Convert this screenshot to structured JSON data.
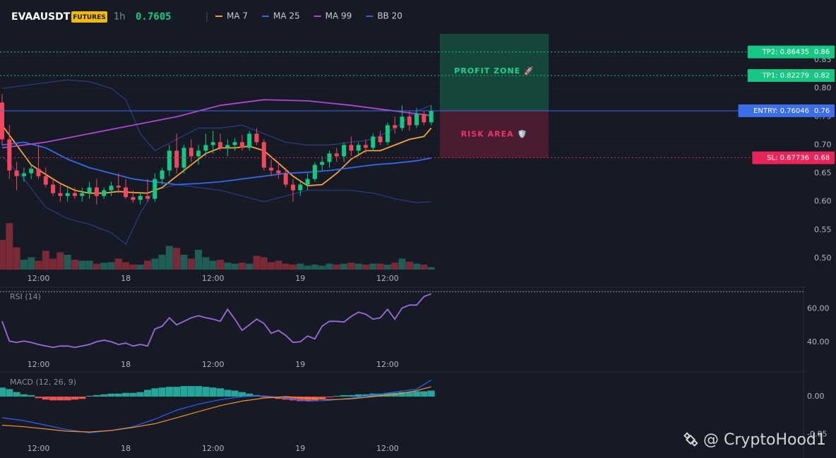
{
  "header": {
    "symbol": "EVAAUSDT",
    "badge": "FUTURES",
    "interval": "1h",
    "price": 0.7605
  },
  "watermark": "@ CryptoHood1",
  "chart_data": [
    {
      "type": "candlestick",
      "categories": [
        null,
        null,
        null,
        null,
        null,
        "12:00",
        null,
        null,
        null,
        null,
        null,
        null,
        null,
        null,
        null,
        null,
        null,
        "18",
        null,
        null,
        null,
        null,
        null,
        null,
        null,
        null,
        null,
        null,
        null,
        "12:00",
        null,
        null,
        null,
        null,
        null,
        null,
        null,
        null,
        null,
        null,
        null,
        "19",
        null,
        null,
        null,
        null,
        null,
        null,
        null,
        null,
        null,
        null,
        null,
        "12:00",
        null,
        null,
        null,
        null,
        null,
        null
      ],
      "open": [
        0.775,
        0.71,
        0.655,
        0.645,
        0.65,
        0.658,
        0.645,
        0.63,
        0.615,
        0.61,
        0.615,
        0.61,
        0.615,
        0.625,
        0.61,
        0.62,
        0.628,
        0.625,
        0.608,
        0.603,
        0.61,
        0.605,
        0.64,
        0.655,
        0.69,
        0.66,
        0.695,
        0.68,
        0.69,
        0.7,
        0.705,
        0.695,
        0.7,
        0.705,
        0.695,
        0.72,
        0.705,
        0.66,
        0.655,
        0.65,
        0.63,
        0.62,
        0.63,
        0.64,
        0.665,
        0.67,
        0.685,
        0.68,
        0.7,
        0.69,
        0.7,
        0.695,
        0.715,
        0.705,
        0.735,
        0.73,
        0.75,
        0.735,
        0.755,
        0.74
      ],
      "high": [
        0.79,
        0.735,
        0.67,
        0.66,
        0.665,
        0.7,
        0.66,
        0.64,
        0.63,
        0.625,
        0.625,
        0.625,
        0.635,
        0.64,
        0.625,
        0.635,
        0.65,
        0.64,
        0.62,
        0.615,
        0.64,
        0.65,
        0.66,
        0.7,
        0.72,
        0.7,
        0.71,
        0.7,
        0.72,
        0.725,
        0.72,
        0.71,
        0.712,
        0.718,
        0.725,
        0.73,
        0.71,
        0.675,
        0.67,
        0.66,
        0.64,
        0.635,
        0.65,
        0.67,
        0.68,
        0.69,
        0.695,
        0.705,
        0.715,
        0.705,
        0.71,
        0.72,
        0.725,
        0.74,
        0.75,
        0.77,
        0.76,
        0.765,
        0.76,
        0.77
      ],
      "low": [
        0.7,
        0.64,
        0.62,
        0.635,
        0.64,
        0.64,
        0.625,
        0.61,
        0.6,
        0.6,
        0.605,
        0.6,
        0.605,
        0.595,
        0.605,
        0.61,
        0.615,
        0.605,
        0.598,
        0.595,
        0.6,
        0.6,
        0.63,
        0.645,
        0.65,
        0.65,
        0.67,
        0.665,
        0.68,
        0.685,
        0.69,
        0.68,
        0.69,
        0.69,
        0.69,
        0.7,
        0.655,
        0.645,
        0.64,
        0.625,
        0.6,
        0.61,
        0.62,
        0.635,
        0.655,
        0.66,
        0.67,
        0.67,
        0.68,
        0.68,
        0.685,
        0.69,
        0.7,
        0.7,
        0.72,
        0.725,
        0.725,
        0.73,
        0.735,
        0.735
      ],
      "close": [
        0.71,
        0.655,
        0.645,
        0.65,
        0.658,
        0.645,
        0.63,
        0.615,
        0.61,
        0.615,
        0.61,
        0.615,
        0.625,
        0.61,
        0.62,
        0.628,
        0.625,
        0.608,
        0.603,
        0.61,
        0.605,
        0.64,
        0.655,
        0.69,
        0.66,
        0.695,
        0.68,
        0.69,
        0.7,
        0.705,
        0.695,
        0.7,
        0.705,
        0.695,
        0.72,
        0.705,
        0.66,
        0.655,
        0.65,
        0.63,
        0.62,
        0.63,
        0.64,
        0.665,
        0.67,
        0.685,
        0.68,
        0.7,
        0.69,
        0.7,
        0.695,
        0.715,
        0.705,
        0.735,
        0.73,
        0.75,
        0.735,
        0.755,
        0.74,
        0.76
      ],
      "up_color": "#0ecb81",
      "down_color": "#f6465d",
      "ylim": [
        0.48,
        0.9
      ],
      "yticks": [
        {
          "value": 0.5,
          "label": "0.50"
        },
        {
          "value": 0.55,
          "label": "0.55"
        },
        {
          "value": 0.6,
          "label": "0.60"
        },
        {
          "value": 0.65,
          "label": "0.65"
        },
        {
          "value": 0.7,
          "label": "0.70"
        },
        {
          "value": 0.75,
          "label": "0.75"
        },
        {
          "value": 0.8,
          "label": "0.80"
        },
        {
          "value": 0.85,
          "label": "0.85"
        }
      ],
      "series": [
        {
          "name": "MA 7",
          "color": "#f7a334",
          "x": [
            0,
            2,
            4,
            6,
            8,
            10,
            12,
            14,
            16,
            18,
            20,
            22,
            24,
            26,
            28,
            30,
            32,
            34,
            36,
            38,
            40,
            42,
            44,
            46,
            48,
            50,
            52,
            54,
            56,
            58,
            59
          ],
          "values": [
            0.735,
            0.7,
            0.665,
            0.648,
            0.632,
            0.62,
            0.615,
            0.615,
            0.618,
            0.616,
            0.615,
            0.625,
            0.645,
            0.665,
            0.685,
            0.695,
            0.695,
            0.698,
            0.69,
            0.668,
            0.645,
            0.628,
            0.63,
            0.65,
            0.675,
            0.69,
            0.69,
            0.7,
            0.71,
            0.715,
            0.73
          ]
        },
        {
          "name": "MA 25",
          "color": "#2f6bea",
          "x": [
            0,
            3,
            6,
            9,
            12,
            15,
            18,
            21,
            24,
            27,
            30,
            33,
            36,
            39,
            42,
            45,
            48,
            51,
            54,
            57,
            59
          ],
          "values": [
            0.7,
            0.705,
            0.695,
            0.675,
            0.66,
            0.65,
            0.64,
            0.635,
            0.63,
            0.632,
            0.635,
            0.64,
            0.645,
            0.65,
            0.652,
            0.655,
            0.66,
            0.665,
            0.668,
            0.672,
            0.677
          ]
        },
        {
          "name": "MA 99",
          "color": "#b045d1",
          "x": [
            0,
            6,
            12,
            18,
            24,
            30,
            36,
            42,
            48,
            54,
            59
          ],
          "values": [
            0.695,
            0.705,
            0.72,
            0.735,
            0.75,
            0.77,
            0.78,
            0.778,
            0.77,
            0.76,
            0.752
          ]
        }
      ],
      "bands": {
        "name": "BB 20",
        "color": "#2c3d86",
        "x": [
          0,
          3,
          6,
          9,
          12,
          15,
          17,
          19,
          21,
          24,
          27,
          30,
          33,
          36,
          39,
          42,
          45,
          48,
          51,
          54,
          57,
          59
        ],
        "upper": [
          0.8,
          0.805,
          0.81,
          0.815,
          0.812,
          0.8,
          0.78,
          0.72,
          0.69,
          0.71,
          0.73,
          0.73,
          0.735,
          0.72,
          0.705,
          0.7,
          0.7,
          0.705,
          0.71,
          0.73,
          0.76,
          0.77
        ],
        "lower": [
          0.68,
          0.64,
          0.59,
          0.57,
          0.56,
          0.545,
          0.525,
          0.58,
          0.62,
          0.63,
          0.625,
          0.62,
          0.61,
          0.6,
          0.61,
          0.62,
          0.62,
          0.62,
          0.615,
          0.605,
          0.598,
          0.6
        ]
      },
      "levels": [
        {
          "label": "TP2: 0.86435",
          "value": 0.86435,
          "axis_label": "0.86",
          "color": "#16c784",
          "dashed": true
        },
        {
          "label": "TP1: 0.82279",
          "value": 0.82279,
          "axis_label": "0.82",
          "color": "#16c784",
          "dashed": true
        },
        {
          "label": "ENTRY: 0.76046",
          "value": 0.76046,
          "axis_label": "0.76",
          "color": "#3b6ee8",
          "dashed": false
        },
        {
          "label": "SL: 0.67736",
          "value": 0.67736,
          "axis_label": "0.68",
          "color": "#e8245a",
          "dashed": true
        }
      ],
      "profit_zone_label": "PROFIT ZONE 🚀",
      "risk_zone_label": "RISK AREA 🛡️"
    },
    {
      "type": "volume",
      "ylim": [
        0,
        100
      ],
      "up_color": "#1f5e57",
      "down_color": "#7a2a37",
      "values": [
        60,
        94,
        45,
        20,
        25,
        18,
        38,
        22,
        35,
        30,
        20,
        18,
        18,
        12,
        14,
        15,
        22,
        15,
        10,
        10,
        18,
        22,
        30,
        48,
        44,
        30,
        22,
        40,
        25,
        18,
        20,
        14,
        12,
        14,
        12,
        28,
        25,
        15,
        18,
        12,
        10,
        12,
        8,
        10,
        8,
        12,
        10,
        12,
        14,
        12,
        10,
        12,
        12,
        10,
        14,
        22,
        16,
        12,
        10,
        5
      ]
    },
    {
      "type": "line",
      "title": "RSI (14)",
      "color": "#9c6ade",
      "ylim": [
        33,
        71
      ],
      "yticks": [
        {
          "value": 60,
          "label": "60.00"
        },
        {
          "value": 40,
          "label": "40.00"
        }
      ],
      "hlines": [
        70
      ],
      "values": [
        52.5,
        40.8,
        40,
        40.8,
        40,
        38.8,
        37.9,
        37.1,
        37.9,
        37.9,
        37.1,
        37.9,
        38.8,
        40.4,
        41.3,
        40.4,
        38.8,
        39.6,
        37.9,
        38.8,
        37.9,
        47.9,
        49.6,
        54.6,
        50.4,
        52.5,
        54.6,
        55.8,
        54.6,
        53.8,
        52.5,
        59.6,
        53.8,
        47.1,
        50.4,
        53.8,
        51.3,
        45.4,
        47.1,
        44.2,
        40,
        40.4,
        43.8,
        42.1,
        49.6,
        52.5,
        52.5,
        52.1,
        55.4,
        57.9,
        56.7,
        53.8,
        54.6,
        59.6,
        53.8,
        60.4,
        62.1,
        62.1,
        67.1,
        68.8
      ]
    },
    {
      "type": "macd",
      "title": "MACD (12, 26, 9)",
      "ylim": [
        -0.06,
        0.03
      ],
      "yticks": [
        {
          "value": 0,
          "label": "0.00"
        },
        {
          "value": -0.05,
          "label": "-0.05"
        }
      ],
      "up_color": "#26a69a",
      "down_color": "#ef5350",
      "histogram": [
        0.012,
        0.01,
        0.006,
        0.003,
        0.002,
        -0.002,
        -0.004,
        -0.005,
        -0.005,
        -0.005,
        -0.004,
        -0.003,
        0.001,
        0.002,
        0.003,
        0.004,
        0.004,
        0.005,
        0.005,
        0.006,
        0.009,
        0.011,
        0.012,
        0.013,
        0.013,
        0.014,
        0.014,
        0.014,
        0.013,
        0.012,
        0.011,
        0.009,
        0.008,
        0.006,
        0.004,
        0.002,
        -0.001,
        -0.002,
        -0.003,
        -0.004,
        -0.005,
        -0.006,
        -0.006,
        -0.005,
        -0.003,
        -0.001,
        0.001,
        0.002,
        0.002,
        0.003,
        0.003,
        0.004,
        0.004,
        0.005,
        0.005,
        0.006,
        0.006,
        0.007,
        0.007,
        0.008
      ],
      "series": [
        {
          "color": "#2962ff",
          "x": [
            0,
            3,
            6,
            9,
            12,
            15,
            18,
            21,
            24,
            27,
            30,
            33,
            36,
            39,
            42,
            45,
            48,
            51,
            54,
            57,
            59
          ],
          "values": [
            -0.028,
            -0.032,
            -0.038,
            -0.044,
            -0.048,
            -0.045,
            -0.04,
            -0.03,
            -0.018,
            -0.01,
            -0.004,
            0.0,
            0.001,
            -0.002,
            -0.006,
            -0.005,
            -0.002,
            0.002,
            0.006,
            0.01,
            0.022
          ]
        },
        {
          "color": "#f7931a",
          "x": [
            0,
            3,
            6,
            9,
            12,
            15,
            18,
            21,
            24,
            27,
            30,
            33,
            36,
            39,
            42,
            45,
            48,
            51,
            54,
            57,
            59
          ],
          "values": [
            -0.038,
            -0.04,
            -0.043,
            -0.046,
            -0.047,
            -0.045,
            -0.041,
            -0.036,
            -0.028,
            -0.02,
            -0.012,
            -0.006,
            -0.002,
            0.0,
            -0.002,
            -0.004,
            -0.003,
            0.0,
            0.003,
            0.008,
            0.013
          ]
        }
      ]
    }
  ]
}
